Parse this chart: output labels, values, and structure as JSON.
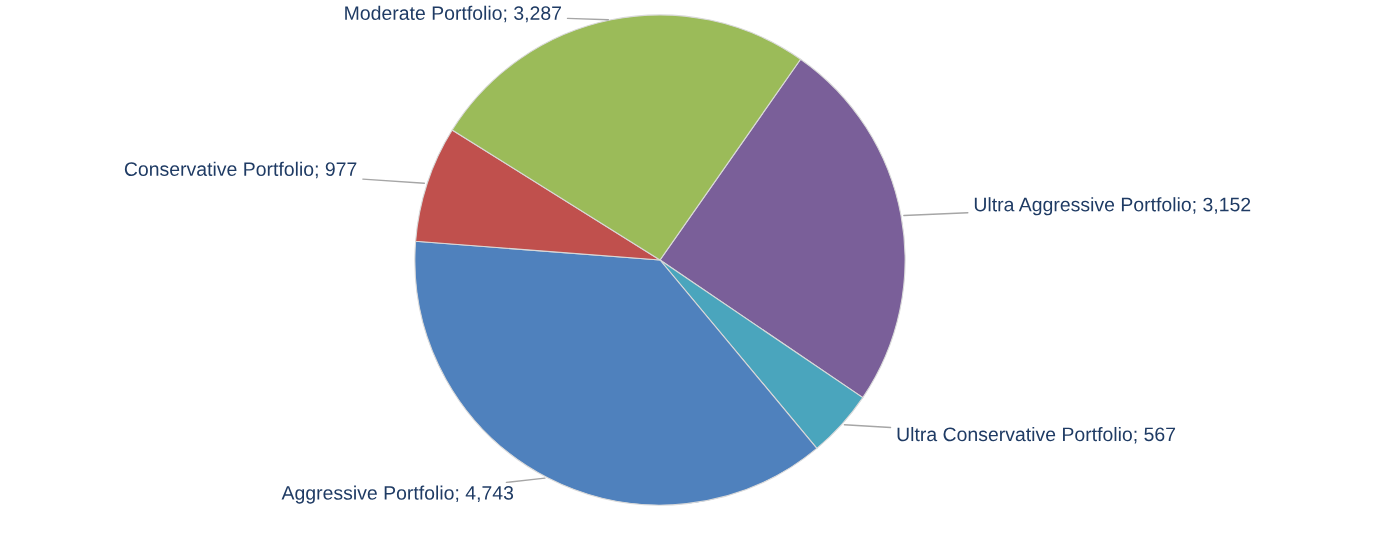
{
  "chart_data": {
    "type": "pie",
    "categories": [
      "Ultra Aggressive Portfolio",
      "Ultra Conservative Portfolio",
      "Aggressive Portfolio",
      "Conservative Portfolio",
      "Moderate Portfolio"
    ],
    "values": [
      3152,
      567,
      4743,
      977,
      3287
    ],
    "colors": [
      "#7a5f99",
      "#4aa5bd",
      "#4f81bd",
      "#c0504d",
      "#9bbb59"
    ],
    "value_labels": [
      "3,152",
      "567",
      "4,743",
      "977",
      "3,287"
    ]
  }
}
